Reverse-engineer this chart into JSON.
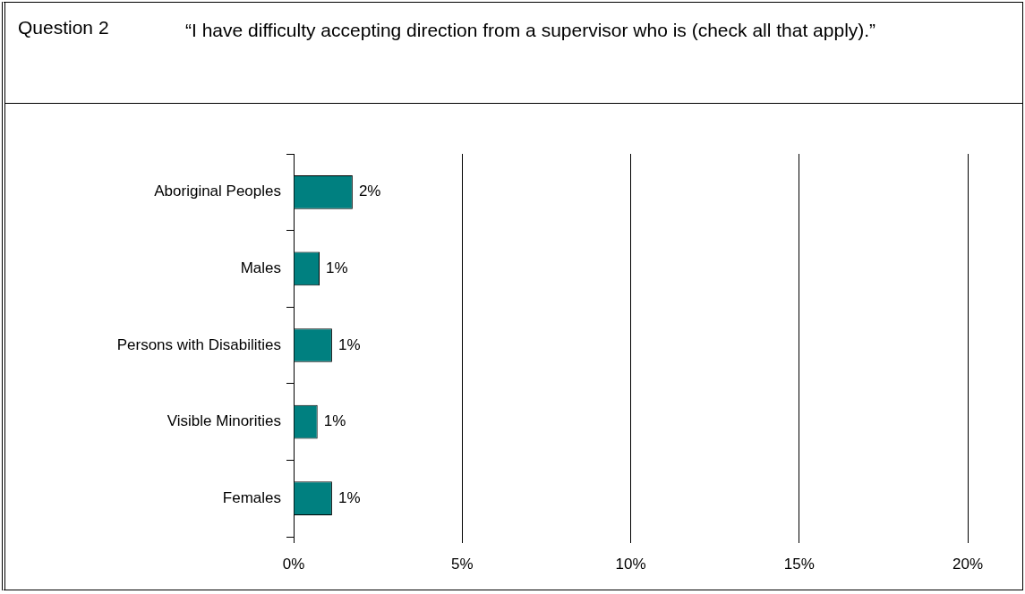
{
  "chart_data": {
    "type": "bar",
    "orientation": "horizontal",
    "title": "Question 2",
    "subtitle": "“I have difficulty accepting direction from a supervisor who is (check all that apply).”",
    "categories": [
      "Aboriginal Peoples",
      "Males",
      "Persons with Disabilities",
      "Visible Minorities",
      "Females"
    ],
    "values": [
      1.75,
      0.77,
      1.14,
      0.71,
      1.14
    ],
    "value_labels": [
      "2%",
      "1%",
      "1%",
      "1%",
      "1%"
    ],
    "color": "#008080",
    "xlim": [
      0,
      20
    ],
    "xticks": [
      {
        "value": 0,
        "label": "0%"
      },
      {
        "value": 5,
        "label": "5%"
      },
      {
        "value": 10,
        "label": "10%"
      },
      {
        "value": 15,
        "label": "15%"
      },
      {
        "value": 20,
        "label": "20%"
      }
    ],
    "grid": "x"
  }
}
